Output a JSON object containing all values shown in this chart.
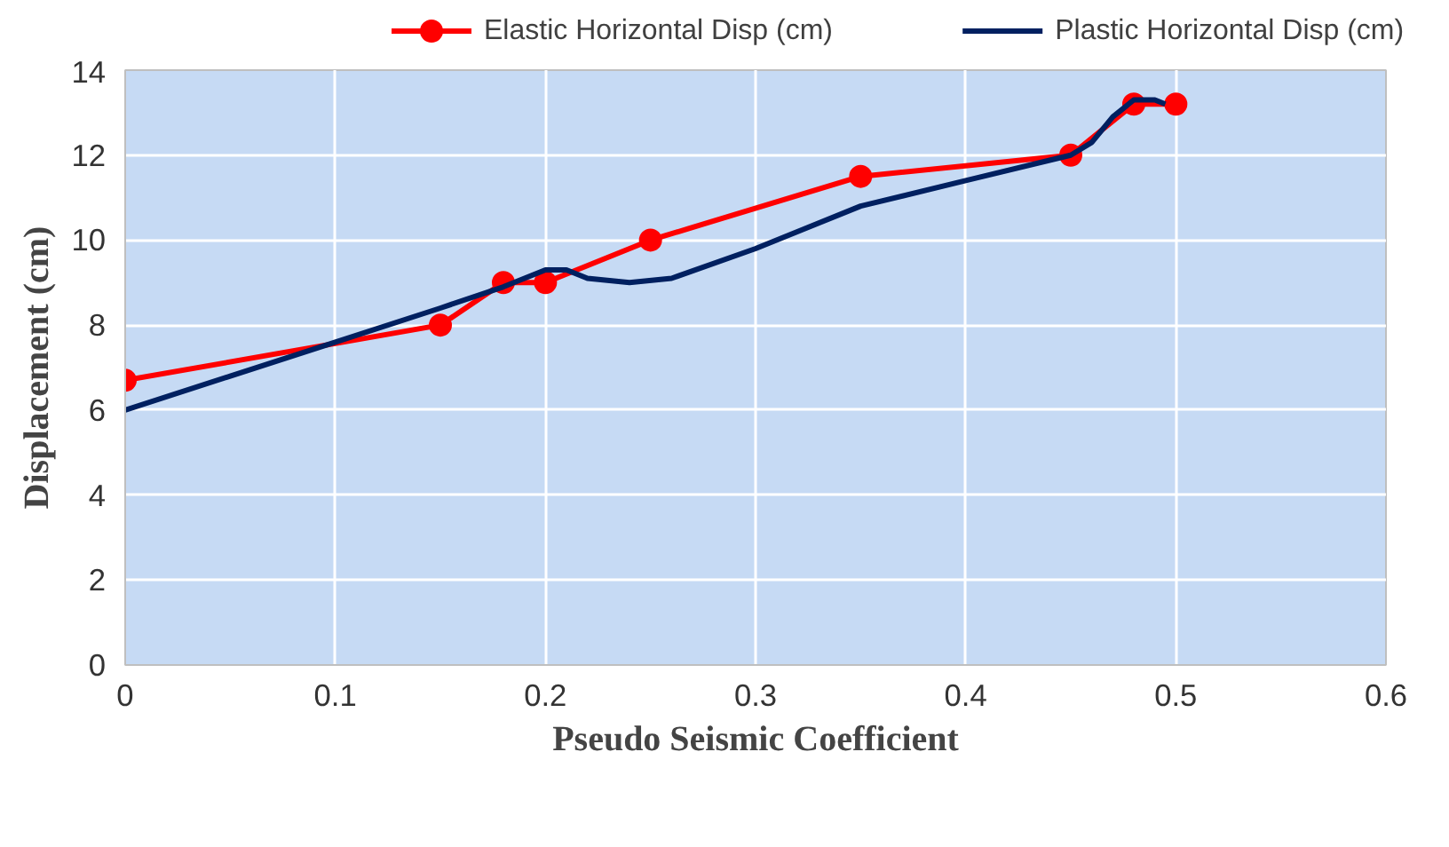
{
  "chart_data": {
    "type": "line",
    "xlabel": "Pseudo Seismic Coefficient",
    "ylabel": "Displacement (cm)",
    "xlim": [
      0,
      0.6
    ],
    "xticks": [
      0,
      0.1,
      0.2,
      0.3,
      0.4,
      0.5,
      0.6
    ],
    "ylim": [
      0,
      14
    ],
    "yticks": [
      0,
      2,
      4,
      6,
      8,
      10,
      12,
      14
    ],
    "grid": true,
    "legend": "top",
    "line_style": "solid",
    "series": [
      {
        "name": "Elastic Horizontal Disp (cm)",
        "color": "#ff0000",
        "marker": "circle",
        "x": [
          0,
          0.15,
          0.18,
          0.2,
          0.25,
          0.35,
          0.45,
          0.48,
          0.5
        ],
        "values": [
          6.7,
          8,
          9,
          9,
          10,
          11.5,
          12,
          13.2,
          13.2
        ]
      },
      {
        "name": "Plastic Horizontal Disp (cm)",
        "color": "#002060",
        "marker": "none",
        "x": [
          0,
          0.05,
          0.1,
          0.15,
          0.18,
          0.2,
          0.21,
          0.22,
          0.24,
          0.26,
          0.3,
          0.35,
          0.4,
          0.45,
          0.46,
          0.47,
          0.48,
          0.49,
          0.495
        ],
        "values": [
          6,
          6.8,
          7.6,
          8.4,
          8.9,
          9.3,
          9.3,
          9.1,
          9.0,
          9.1,
          9.8,
          10.8,
          11.4,
          12,
          12.3,
          12.9,
          13.3,
          13.3,
          13.2
        ]
      }
    ]
  }
}
